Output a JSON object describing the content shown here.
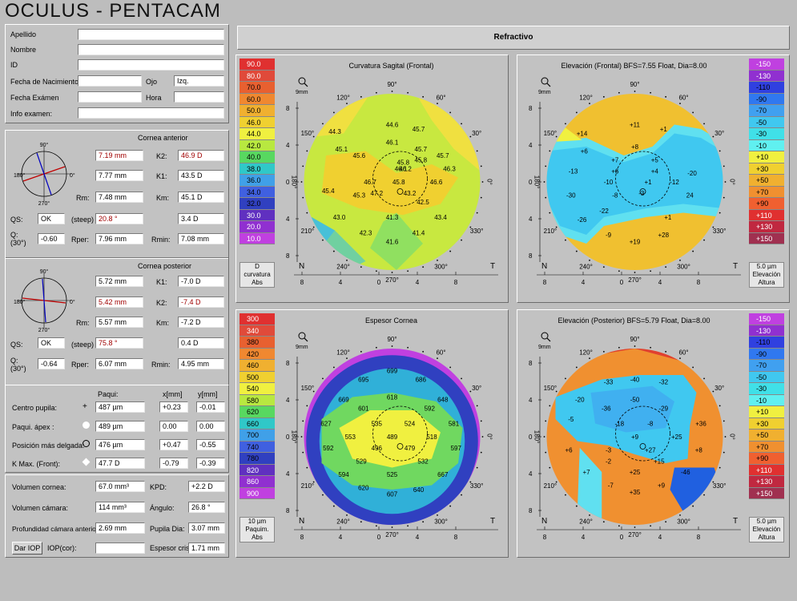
{
  "app_title": "OCULUS  -  PENTACAM",
  "view_mode": "Refractivo",
  "patient": {
    "apellido_label": "Apellido",
    "apellido": "",
    "nombre_label": "Nombre",
    "nombre": "",
    "id_label": "ID",
    "id": "",
    "fecha_nac_label": "Fecha de Nacimiento",
    "fecha_nac": "",
    "ojo_label": "Ojo",
    "ojo": "Izq.",
    "fecha_exam_label": "Fecha Exámen",
    "fecha_exam": "",
    "hora_label": "Hora",
    "hora": "",
    "info_label": "Info examen:"
  },
  "anterior": {
    "heading": "Cornea anterior",
    "r1": "7.19 mm",
    "k2_label": "K2:",
    "k2": "46.9 D",
    "r2": "7.77 mm",
    "k1_label": "K1:",
    "k1": "43.5 D",
    "rm_label": "Rm:",
    "rm": "7.48 mm",
    "km_label": "Km:",
    "km": "45.1 D",
    "qs_label": "QS:",
    "qs": "OK",
    "steep_label": "(steep)",
    "axis": "20.8 °",
    "astig": "3.4 D",
    "q_label": "Q:",
    "q30_label": "(30°)",
    "q": "-0.60",
    "rper_label": "Rper:",
    "rper": "7.96 mm",
    "rmin_label": "Rmin:",
    "rmin": "7.08 mm"
  },
  "posterior": {
    "heading": "Cornea posterior",
    "r1": "5.72 mm",
    "k1_label": "K1:",
    "k1": "-7.0 D",
    "r2": "5.42 mm",
    "k2_label": "K2:",
    "k2": "-7.4 D",
    "rm_label": "Rm:",
    "rm": "5.57 mm",
    "km_label": "Km:",
    "km": "-7.2 D",
    "qs_label": "QS:",
    "qs": "OK",
    "steep_label": "(steep)",
    "axis": "75.8 °",
    "astig": "0.4 D",
    "q_label": "Q:",
    "q30_label": "(30°)",
    "q": "-0.64",
    "rper_label": "Rper:",
    "rper": "6.07 mm",
    "rmin_label": "Rmin:",
    "rmin": "4.95 mm"
  },
  "pachy": {
    "col_paqui": "Paqui:",
    "col_x": "x[mm]",
    "col_y": "y[mm]",
    "rows": [
      {
        "label": "Centro pupila:",
        "paqui": "487 µm",
        "x": "+0.23",
        "y": "-0.01"
      },
      {
        "label": "Paqui. ápex :",
        "paqui": "489 µm",
        "x": "0.00",
        "y": "0.00"
      },
      {
        "label": "Posición más delgada:",
        "paqui": "476 µm",
        "x": "+0.47",
        "y": "-0.55"
      },
      {
        "label": "K Max. (Front):",
        "paqui": "47.7 D",
        "x": "-0.79",
        "y": "-0.39"
      }
    ]
  },
  "volumes": {
    "vol_cornea_label": "Volumen cornea:",
    "vol_cornea": "67.0 mm³",
    "kpd_label": "KPD:",
    "kpd": "+2.2 D",
    "vol_camara_label": "Volumen cámara:",
    "vol_camara": "114 mm³",
    "angulo_label": "Ángulo:",
    "angulo": "26.8 °",
    "prof_label": "Profundidad cámara anterior",
    "prof": "2.69 mm",
    "pupila_label": "Pupila Dia:",
    "pupila": "3.07 mm",
    "iop_button": "Dar IOP",
    "iop_label": "IOP(cor):",
    "iop": "",
    "espesor_label": "Espesor crista",
    "espesor": "1.71 mm"
  },
  "common_axis": {
    "angles": [
      "90°",
      "60°",
      "30°",
      "0°",
      "330°",
      "300°",
      "270°",
      "240°",
      "210°",
      "180°",
      "150°",
      "120°"
    ],
    "ticks": [
      "8",
      "4",
      "0",
      "4",
      "8"
    ],
    "n": "N",
    "t": "T",
    "zoom": "9mm"
  },
  "maps": [
    {
      "title": "Curvatura Sagital (Frontal)",
      "scale": [
        "90.0",
        "80.0",
        "70.0",
        "60.0",
        "50.0",
        "46.0",
        "44.0",
        "42.0",
        "40.0",
        "38.0",
        "36.0",
        "34.0",
        "32.0",
        "30.0",
        "20.0",
        "10.0"
      ],
      "scale_colors": [
        "#e03030",
        "#e04a3a",
        "#e86030",
        "#f08830",
        "#f0b030",
        "#f0d030",
        "#f0f040",
        "#b8e840",
        "#58d860",
        "#30c8c8",
        "#40a0e8",
        "#4060e0",
        "#3040c0",
        "#6030c0",
        "#9030d0",
        "#c040e0"
      ],
      "unit_lines": [
        "D",
        "curvatura",
        "Abs"
      ],
      "values": [
        "44.6",
        "45.7",
        "44.3",
        "46.1",
        "45.1",
        "45.7",
        "45.6",
        "45.8",
        "45.7",
        "45.8",
        "46.1",
        "46.2",
        "46.3",
        "46.6",
        "46.7",
        "45.8",
        "45.4",
        "47.2",
        "43.2",
        "45.3",
        "42.5",
        "43.0",
        "41.3",
        "43.4",
        "42.3",
        "41.4",
        "41.6"
      ]
    },
    {
      "title": "Elevación (Frontal)  BFS=7.55 Float, Dia=8.00",
      "scale": [
        "-150",
        "-130",
        "-110",
        "-90",
        "-70",
        "-50",
        "-30",
        "-10",
        "+10",
        "+30",
        "+50",
        "+70",
        "+90",
        "+110",
        "+130",
        "+150"
      ],
      "scale_colors": [
        "#c040e0",
        "#9030d0",
        "#3040e0",
        "#3078f0",
        "#40a0f0",
        "#40c8f0",
        "#40e0e8",
        "#60f0f0",
        "#f0f040",
        "#f0d030",
        "#f0b030",
        "#f09030",
        "#f06030",
        "#e03030",
        "#c02840",
        "#a03050"
      ],
      "unit_lines": [
        "5.0 µm",
        "Elevación",
        "Altura"
      ],
      "values": [
        "+11",
        "+14",
        "+1",
        "+6",
        "+8",
        "+7",
        "+5",
        "+6",
        "+4",
        "-13",
        "-10",
        "+1",
        "-20",
        "-30",
        "-8",
        "-12",
        "24",
        "-22",
        "-3",
        "-26",
        "+1",
        "-9",
        "+28",
        "+19"
      ]
    },
    {
      "title": "Espesor Cornea",
      "scale": [
        "300",
        "340",
        "380",
        "420",
        "460",
        "500",
        "540",
        "580",
        "620",
        "660",
        "700",
        "740",
        "780",
        "820",
        "860",
        "900"
      ],
      "scale_colors": [
        "#e03030",
        "#e04a3a",
        "#e86030",
        "#f08830",
        "#f0b030",
        "#f0d030",
        "#f0f040",
        "#b8e840",
        "#58d860",
        "#30c8c8",
        "#40a0e8",
        "#4060e0",
        "#3040c0",
        "#6030c0",
        "#9030d0",
        "#c040e0"
      ],
      "unit_lines": [
        "10 µm",
        "Paquim.",
        "Abs"
      ],
      "values": [
        "699",
        "695",
        "686",
        "669",
        "618",
        "648",
        "601",
        "627",
        "535",
        "524",
        "592",
        "581",
        "553",
        "489",
        "518",
        "592",
        "496",
        "479",
        "597",
        "529",
        "532",
        "594",
        "525",
        "667",
        "620",
        "607",
        "640"
      ]
    },
    {
      "title": "Elevación (Posterior)  BFS=5.79 Float, Dia=8.00",
      "scale": [
        "-150",
        "-130",
        "-110",
        "-90",
        "-70",
        "-50",
        "-30",
        "-10",
        "+10",
        "+30",
        "+50",
        "+70",
        "+90",
        "+110",
        "+130",
        "+150"
      ],
      "scale_colors": [
        "#c040e0",
        "#9030d0",
        "#3040e0",
        "#3078f0",
        "#40a0f0",
        "#40c8f0",
        "#40e0e8",
        "#60f0f0",
        "#f0f040",
        "#f0d030",
        "#f0b030",
        "#f09030",
        "#f06030",
        "#e03030",
        "#c02840",
        "#a03050"
      ],
      "unit_lines": [
        "5.0 µm",
        "Elevación",
        "Altura"
      ],
      "values": [
        "-40",
        "-33",
        "-32",
        "-20",
        "-50",
        "-36",
        "-29",
        "-5",
        "-18",
        "-8",
        "+36",
        "+9",
        "+25",
        "+6",
        "-3",
        "+27",
        "+8",
        "+7",
        "-2",
        "+15",
        "+25",
        "-46",
        "-7",
        "+9",
        "+35"
      ]
    }
  ]
}
